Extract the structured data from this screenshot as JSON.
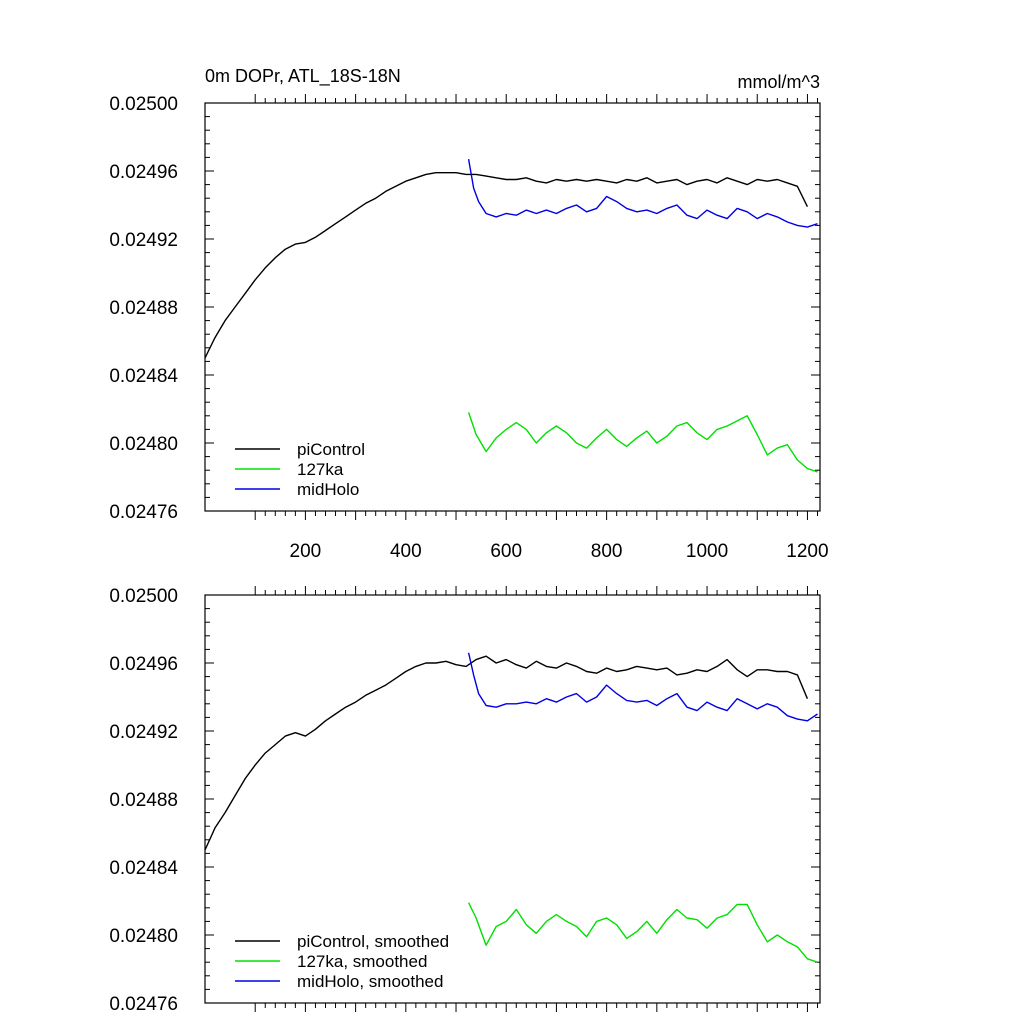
{
  "figure": {
    "title_left": "0m DOPr, ATL_18S-18N",
    "title_right": "mmol/m^3"
  },
  "colors": {
    "piControl": "#000000",
    "127ka": "#00e000",
    "midHolo": "#0000e6"
  },
  "chart_data": [
    {
      "type": "line",
      "panel": "top",
      "xlim": [
        0,
        1225
      ],
      "ylim": [
        0.02476,
        0.025
      ],
      "xticks": [
        200,
        400,
        600,
        800,
        1000,
        1200
      ],
      "xtick_labels": [
        "200",
        "400",
        "600",
        "800",
        "1000",
        "1200"
      ],
      "yticks": [
        0.02476,
        0.0248,
        0.02484,
        0.02488,
        0.02492,
        0.02496,
        0.025
      ],
      "ytick_labels": [
        "0.02476",
        "0.02480",
        "0.02484",
        "0.02488",
        "0.02492",
        "0.02496",
        "0.02500"
      ],
      "legend_position": "bottom-left",
      "series": [
        {
          "name": "piControl",
          "key": "piControl",
          "x": [
            0,
            20,
            40,
            60,
            80,
            100,
            120,
            140,
            160,
            180,
            200,
            220,
            240,
            260,
            280,
            300,
            320,
            340,
            360,
            380,
            400,
            420,
            440,
            460,
            480,
            500,
            520,
            540,
            560,
            580,
            600,
            620,
            640,
            660,
            680,
            700,
            720,
            740,
            760,
            780,
            800,
            820,
            840,
            860,
            880,
            900,
            920,
            940,
            960,
            980,
            1000,
            1020,
            1040,
            1060,
            1080,
            1100,
            1120,
            1140,
            1160,
            1180,
            1200
          ],
          "y": [
            0.02485,
            0.024862,
            0.024872,
            0.02488,
            0.024888,
            0.024896,
            0.024903,
            0.024909,
            0.024914,
            0.024917,
            0.024918,
            0.024921,
            0.024925,
            0.024929,
            0.024933,
            0.024937,
            0.024941,
            0.024944,
            0.024948,
            0.024951,
            0.024954,
            0.024956,
            0.024958,
            0.024959,
            0.024959,
            0.024959,
            0.024958,
            0.024958,
            0.024957,
            0.024956,
            0.024955,
            0.024955,
            0.024956,
            0.024954,
            0.024953,
            0.024955,
            0.024954,
            0.024955,
            0.024954,
            0.024955,
            0.024954,
            0.024953,
            0.024955,
            0.024954,
            0.024956,
            0.024953,
            0.024954,
            0.024955,
            0.024952,
            0.024954,
            0.024955,
            0.024953,
            0.024956,
            0.024954,
            0.024952,
            0.024955,
            0.024954,
            0.024955,
            0.024953,
            0.024951,
            0.024939
          ]
        },
        {
          "name": "127ka",
          "key": "127ka",
          "x": [
            525,
            540,
            560,
            580,
            600,
            620,
            640,
            660,
            680,
            700,
            720,
            740,
            760,
            780,
            800,
            820,
            840,
            860,
            880,
            900,
            920,
            940,
            960,
            980,
            1000,
            1020,
            1040,
            1060,
            1080,
            1100,
            1120,
            1140,
            1160,
            1180,
            1200,
            1220
          ],
          "y": [
            0.024818,
            0.024805,
            0.024795,
            0.024803,
            0.024808,
            0.024812,
            0.024808,
            0.0248,
            0.024806,
            0.02481,
            0.024806,
            0.0248,
            0.024797,
            0.024803,
            0.024808,
            0.024802,
            0.024798,
            0.024803,
            0.024807,
            0.0248,
            0.024804,
            0.02481,
            0.024812,
            0.024806,
            0.024802,
            0.024808,
            0.02481,
            0.024813,
            0.024816,
            0.024805,
            0.024793,
            0.024797,
            0.024799,
            0.02479,
            0.024785,
            0.024783
          ]
        },
        {
          "name": "midHolo",
          "key": "midHolo",
          "x": [
            525,
            535,
            545,
            560,
            580,
            600,
            620,
            640,
            660,
            680,
            700,
            720,
            740,
            760,
            780,
            800,
            820,
            840,
            860,
            880,
            900,
            920,
            940,
            960,
            980,
            1000,
            1020,
            1040,
            1060,
            1080,
            1100,
            1120,
            1140,
            1160,
            1180,
            1200,
            1220
          ],
          "y": [
            0.024967,
            0.02495,
            0.024942,
            0.024935,
            0.024933,
            0.024935,
            0.024934,
            0.024937,
            0.024935,
            0.024937,
            0.024935,
            0.024938,
            0.02494,
            0.024936,
            0.024938,
            0.024945,
            0.024942,
            0.024938,
            0.024936,
            0.024937,
            0.024935,
            0.024938,
            0.02494,
            0.024934,
            0.024932,
            0.024937,
            0.024934,
            0.024932,
            0.024938,
            0.024936,
            0.024932,
            0.024935,
            0.024933,
            0.02493,
            0.024928,
            0.024927,
            0.024929
          ]
        }
      ]
    },
    {
      "type": "line",
      "panel": "bottom",
      "xlim": [
        0,
        1225
      ],
      "ylim": [
        0.02476,
        0.025
      ],
      "xticks": [
        200,
        400,
        600,
        800,
        1000,
        1200
      ],
      "yticks": [
        0.02476,
        0.0248,
        0.02484,
        0.02488,
        0.02492,
        0.02496,
        0.025
      ],
      "ytick_labels": [
        "0.02476",
        "0.02480",
        "0.02484",
        "0.02488",
        "0.02492",
        "0.02496",
        "0.02500"
      ],
      "legend_position": "bottom-left",
      "series": [
        {
          "name": "piControl, smoothed",
          "key": "piControl",
          "x": [
            0,
            20,
            40,
            60,
            80,
            100,
            120,
            140,
            160,
            180,
            200,
            220,
            240,
            260,
            280,
            300,
            320,
            340,
            360,
            380,
            400,
            420,
            440,
            460,
            480,
            500,
            520,
            540,
            560,
            580,
            600,
            620,
            640,
            660,
            680,
            700,
            720,
            740,
            760,
            780,
            800,
            820,
            840,
            860,
            880,
            900,
            920,
            940,
            960,
            980,
            1000,
            1020,
            1040,
            1060,
            1080,
            1100,
            1120,
            1140,
            1160,
            1180,
            1200
          ],
          "y": [
            0.02485,
            0.024863,
            0.024872,
            0.024882,
            0.024892,
            0.0249,
            0.024907,
            0.024912,
            0.024917,
            0.024919,
            0.024917,
            0.024921,
            0.024926,
            0.02493,
            0.024934,
            0.024937,
            0.024941,
            0.024944,
            0.024947,
            0.024951,
            0.024955,
            0.024958,
            0.02496,
            0.02496,
            0.024961,
            0.024959,
            0.024958,
            0.024962,
            0.024964,
            0.02496,
            0.024962,
            0.024959,
            0.024957,
            0.024961,
            0.024958,
            0.024957,
            0.02496,
            0.024958,
            0.024955,
            0.024954,
            0.024957,
            0.024955,
            0.024956,
            0.024958,
            0.024957,
            0.024956,
            0.024957,
            0.024953,
            0.024954,
            0.024956,
            0.024955,
            0.024958,
            0.024962,
            0.024956,
            0.024952,
            0.024956,
            0.024956,
            0.024955,
            0.024955,
            0.024953,
            0.024939
          ]
        },
        {
          "name": "127ka, smoothed",
          "key": "127ka",
          "x": [
            525,
            540,
            560,
            580,
            600,
            620,
            640,
            660,
            680,
            700,
            720,
            740,
            760,
            780,
            800,
            820,
            840,
            860,
            880,
            900,
            920,
            940,
            960,
            980,
            1000,
            1020,
            1040,
            1060,
            1080,
            1100,
            1120,
            1140,
            1160,
            1180,
            1200,
            1220
          ],
          "y": [
            0.024819,
            0.02481,
            0.024794,
            0.024805,
            0.024808,
            0.024815,
            0.024806,
            0.024801,
            0.024808,
            0.024812,
            0.024808,
            0.024805,
            0.024799,
            0.024808,
            0.02481,
            0.024806,
            0.024798,
            0.024802,
            0.024808,
            0.024801,
            0.024809,
            0.024815,
            0.02481,
            0.024809,
            0.024804,
            0.02481,
            0.024812,
            0.024818,
            0.024818,
            0.024806,
            0.024796,
            0.0248,
            0.024796,
            0.024793,
            0.024786,
            0.024784
          ]
        },
        {
          "name": "midHolo, smoothed",
          "key": "midHolo",
          "x": [
            525,
            535,
            545,
            560,
            580,
            600,
            620,
            640,
            660,
            680,
            700,
            720,
            740,
            760,
            780,
            800,
            820,
            840,
            860,
            880,
            900,
            920,
            940,
            960,
            980,
            1000,
            1020,
            1040,
            1060,
            1080,
            1100,
            1120,
            1140,
            1160,
            1180,
            1200,
            1220
          ],
          "y": [
            0.024966,
            0.024953,
            0.024942,
            0.024935,
            0.024934,
            0.024936,
            0.024936,
            0.024937,
            0.024936,
            0.024939,
            0.024937,
            0.02494,
            0.024942,
            0.024937,
            0.02494,
            0.024947,
            0.024942,
            0.024938,
            0.024937,
            0.024938,
            0.024935,
            0.024939,
            0.024942,
            0.024934,
            0.024932,
            0.024937,
            0.024934,
            0.024932,
            0.024939,
            0.024936,
            0.024933,
            0.024936,
            0.024934,
            0.024929,
            0.024927,
            0.024926,
            0.02493
          ]
        }
      ]
    }
  ]
}
